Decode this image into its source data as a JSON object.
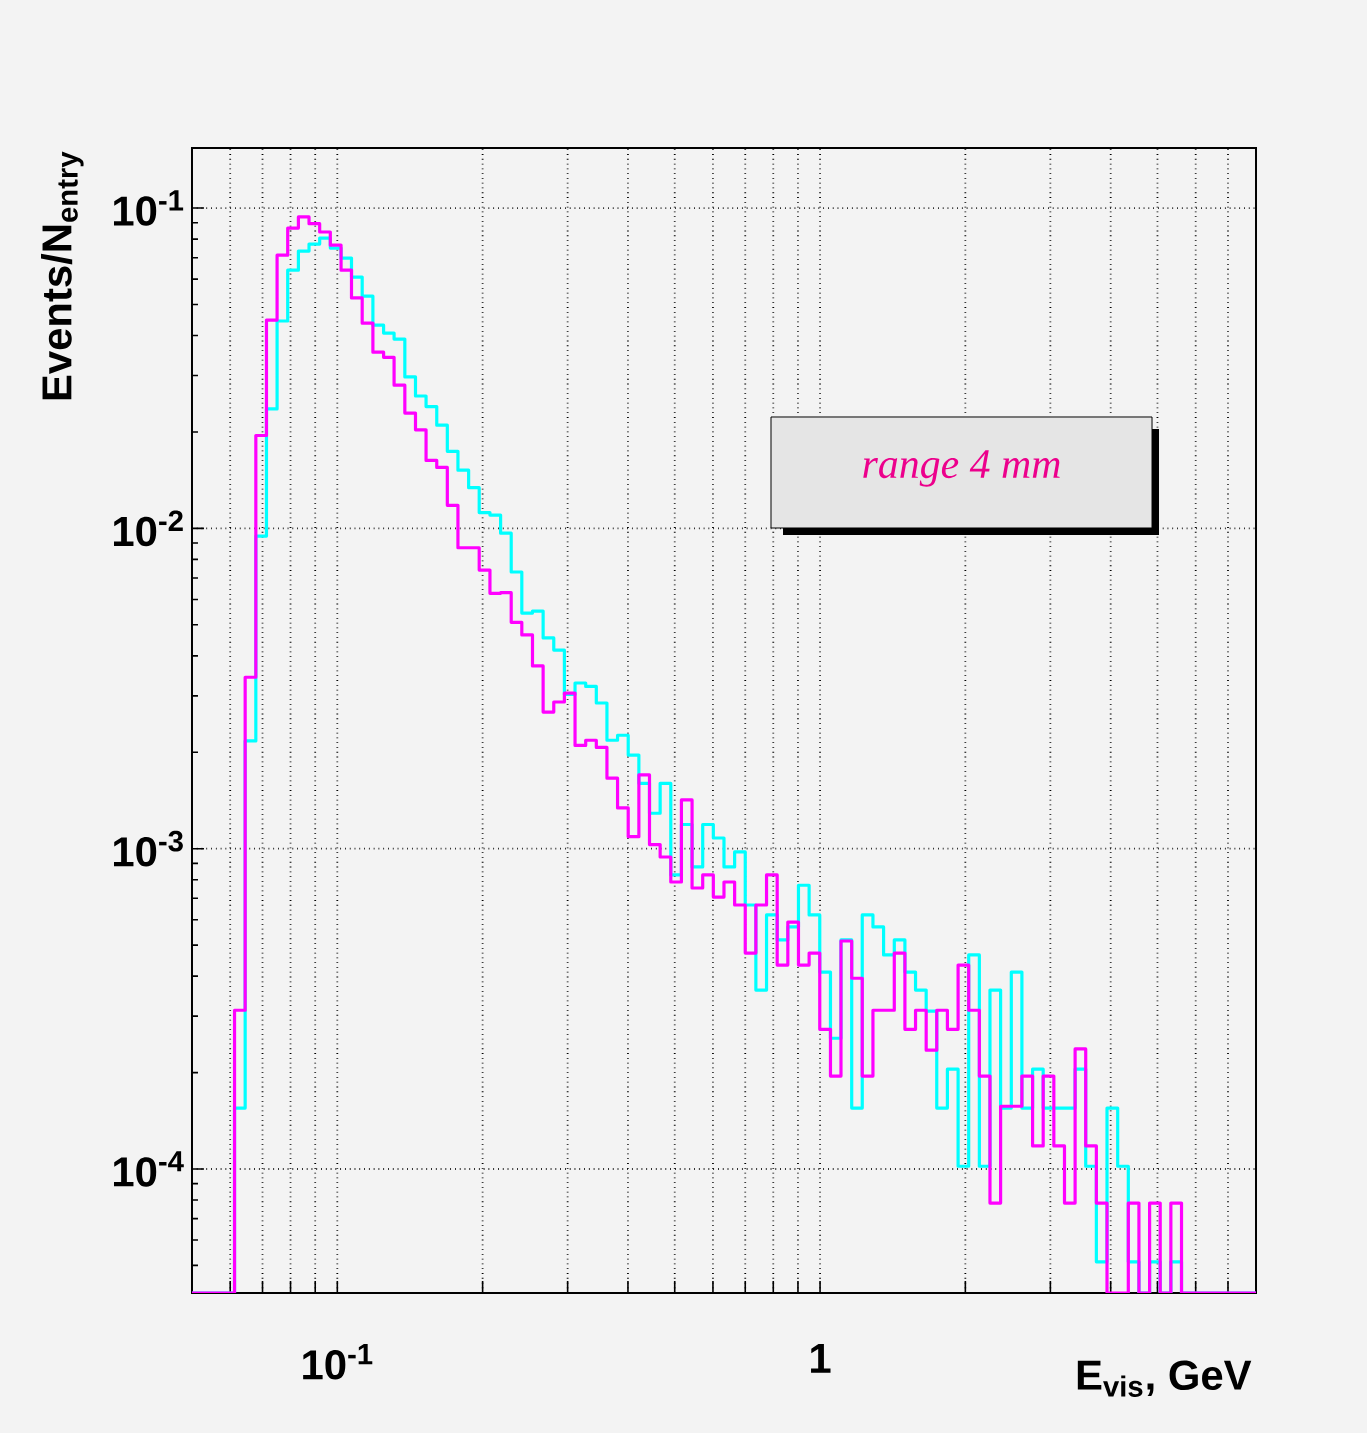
{
  "chart_data": {
    "type": "histogram",
    "bins": [
      0.05,
      0.0526,
      0.05534,
      0.05822,
      0.06125,
      0.06444,
      0.0678,
      0.07133,
      0.07504,
      0.07895,
      0.08306,
      0.08738,
      0.09193,
      0.09672,
      0.1018,
      0.107,
      0.1126,
      0.1185,
      0.1247,
      0.1311,
      0.138,
      0.1452,
      0.1527,
      0.1607,
      0.169,
      0.1778,
      0.1871,
      0.1968,
      0.2071,
      0.2179,
      0.2292,
      0.2411,
      0.2537,
      0.2669,
      0.2808,
      0.2954,
      0.3108,
      0.327,
      0.344,
      0.3619,
      0.3807,
      0.4005,
      0.4214,
      0.4433,
      0.4664,
      0.4907,
      0.5162,
      0.5431,
      0.5714,
      0.6011,
      0.6324,
      0.6654,
      0.7,
      0.7364,
      0.7748,
      0.8151,
      0.8576,
      0.9022,
      0.9492,
      0.9986,
      1.051,
      1.105,
      1.163,
      1.223,
      1.287,
      1.354,
      1.425,
      1.499,
      1.577,
      1.659,
      1.745,
      1.836,
      1.932,
      2.032,
      2.138,
      2.249,
      2.366,
      2.49,
      2.619,
      2.756,
      2.899,
      3.05,
      3.209,
      3.376,
      3.551,
      3.736,
      3.931,
      4.136,
      4.351,
      4.577,
      4.816,
      5.066,
      5.33,
      5.608,
      5.9,
      6.207,
      6.53,
      6.87,
      7.227,
      7.604,
      8
    ],
    "series": [
      {
        "color": "#00ffff",
        "values": [
          null,
          null,
          null,
          null,
          0.000155,
          0.00217,
          0.00946,
          0.0236,
          0.0444,
          0.064,
          0.0734,
          0.0772,
          0.0806,
          0.075,
          0.0698,
          0.0609,
          0.0531,
          0.0431,
          0.0407,
          0.039,
          0.0297,
          0.0259,
          0.024,
          0.021,
          0.0174,
          0.0152,
          0.0134,
          0.0112,
          0.011,
          0.00966,
          0.00731,
          0.00544,
          0.00552,
          0.00455,
          0.00417,
          0.00303,
          0.00329,
          0.00321,
          0.00285,
          0.00218,
          0.00226,
          0.00196,
          0.0016,
          0.00129,
          0.0016,
          0.000828,
          0.00119,
          0.000877,
          0.00119,
          0.00108,
          0.000877,
          0.000977,
          0.000667,
          0.000362,
          0.000621,
          0.000519,
          0.00057,
          0.000769,
          0.000621,
          0.000412,
          0.000256,
          0.000519,
          0.000155,
          0.000621,
          0.00057,
          0.000466,
          0.000519,
          0.000412,
          0.000362,
          0.000311,
          0.000155,
          0.000205,
          0.000102,
          0.000466,
          0.000102,
          0.000362,
          0.000155,
          0.000412,
          0.000155,
          0.000205,
          0.000155,
          0.000155,
          0.000155,
          0.000205,
          0.000102,
          5.13e-05,
          0.000155,
          0.000102,
          5.13e-05,
          null,
          5.13e-05,
          null,
          5.13e-05,
          null,
          null,
          null,
          null,
          null,
          null,
          null
        ]
      },
      {
        "color": "#ff00ff",
        "values": [
          null,
          null,
          null,
          null,
          0.000313,
          0.00343,
          0.0195,
          0.0447,
          0.0713,
          0.0866,
          0.0938,
          0.0894,
          0.0842,
          0.0766,
          0.064,
          0.0524,
          0.0437,
          0.0355,
          0.0342,
          0.028,
          0.0229,
          0.0203,
          0.0163,
          0.0155,
          0.0118,
          0.0087,
          0.0087,
          0.00741,
          0.00627,
          0.0063,
          0.00509,
          0.00465,
          0.00372,
          0.00267,
          0.00287,
          0.00306,
          0.0021,
          0.00218,
          0.00207,
          0.00166,
          0.00134,
          0.00109,
          0.0017,
          0.00103,
          0.000942,
          0.000787,
          0.00142,
          0.000754,
          0.000828,
          0.000706,
          0.000787,
          0.000667,
          0.000472,
          0.000667,
          0.000828,
          0.000433,
          0.00059,
          0.000433,
          0.000472,
          0.000273,
          0.000195,
          0.000515,
          0.000394,
          0.000195,
          0.000313,
          0.000313,
          0.000472,
          0.000273,
          0.000313,
          0.000235,
          0.000313,
          0.000273,
          0.000433,
          0.000313,
          0.000195,
          7.83e-05,
          0.000157,
          0.000157,
          0.000195,
          0.000118,
          0.000195,
          0.000118,
          7.83e-05,
          0.000237,
          0.000118,
          7.83e-05,
          null,
          null,
          7.83e-05,
          null,
          7.83e-05,
          null,
          7.83e-05,
          null,
          null,
          null,
          null,
          null,
          null,
          null
        ]
      }
    ],
    "xlabel": "E$_{vis}$, GeV",
    "ylabel": "Events/N$_{entry}$",
    "annotations": [
      "range 4 mm"
    ],
    "log": "xy",
    "grid": true,
    "xlim": [
      0.05,
      8
    ],
    "ylim": [
      4.1e-05,
      0.154
    ],
    "xticks": [
      {
        "value": 0.06,
        "label": null
      },
      {
        "value": 0.07,
        "label": null
      },
      {
        "value": 0.08,
        "label": null
      },
      {
        "value": 0.09,
        "label": null
      },
      {
        "value": 0.1,
        "label": "10$^{-1}$"
      },
      {
        "value": 0.2,
        "label": null
      },
      {
        "value": 0.3,
        "label": null
      },
      {
        "value": 0.4,
        "label": null
      },
      {
        "value": 0.5,
        "label": null
      },
      {
        "value": 0.6,
        "label": null
      },
      {
        "value": 0.7,
        "label": null
      },
      {
        "value": 0.8,
        "label": null
      },
      {
        "value": 0.9,
        "label": null
      },
      1,
      {
        "value": 2,
        "label": null
      },
      {
        "value": 3,
        "label": null
      },
      {
        "value": 4,
        "label": null
      },
      {
        "value": 5,
        "label": null
      },
      {
        "value": 6,
        "label": null
      },
      {
        "value": 7,
        "label": null
      }
    ],
    "yticks": [
      {
        "value": 0.0001,
        "label": "10$^{-4}$"
      },
      {
        "value": 0.001,
        "label": "10$^{-3}$"
      },
      {
        "value": 0.01,
        "label": "10$^{-2}$"
      },
      {
        "value": 0.1,
        "label": "10$^{-1}$"
      }
    ]
  }
}
